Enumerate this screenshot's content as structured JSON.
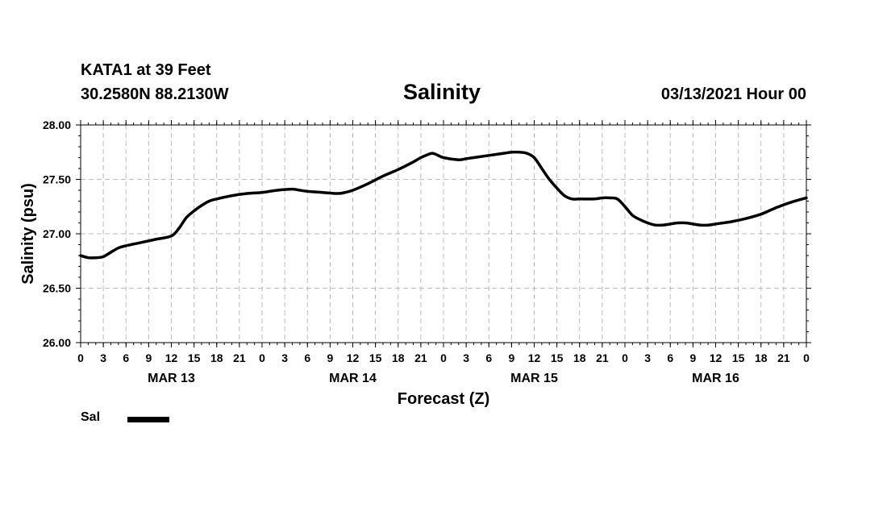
{
  "header": {
    "station": "KATA1 at 39 Feet",
    "coords": "30.2580N 88.2130W",
    "title": "Salinity",
    "date": "03/13/2021 Hour 00"
  },
  "legend": {
    "label": "Sal"
  },
  "chart_data": {
    "type": "line",
    "title": "Salinity",
    "xlabel": "Forecast (Z)",
    "ylabel": "Salinity (psu)",
    "ylim": [
      26.0,
      28.0
    ],
    "yticks": [
      26.0,
      26.5,
      27.0,
      27.5,
      28.0
    ],
    "ytick_labels": [
      "26.00",
      "26.50",
      "27.00",
      "27.50",
      "28.00"
    ],
    "xlim": [
      0,
      96
    ],
    "xticks": [
      0,
      3,
      6,
      9,
      12,
      15,
      18,
      21,
      24,
      27,
      30,
      33,
      36,
      39,
      42,
      45,
      48,
      51,
      54,
      57,
      60,
      63,
      66,
      69,
      72,
      75,
      78,
      81,
      84,
      87,
      90,
      93,
      96
    ],
    "xtick_labels": [
      "0",
      "3",
      "6",
      "9",
      "12",
      "15",
      "18",
      "21",
      "0",
      "3",
      "6",
      "9",
      "12",
      "15",
      "18",
      "21",
      "0",
      "3",
      "6",
      "9",
      "12",
      "15",
      "18",
      "21",
      "0",
      "3",
      "6",
      "9",
      "12",
      "15",
      "18",
      "21",
      "0"
    ],
    "date_labels": [
      {
        "label": "MAR 13",
        "hour": 12
      },
      {
        "label": "MAR 14",
        "hour": 36
      },
      {
        "label": "MAR 15",
        "hour": 60
      },
      {
        "label": "MAR 16",
        "hour": 84
      }
    ],
    "grid": true,
    "series": [
      {
        "name": "Sal",
        "color": "#000000",
        "x": [
          0,
          1,
          2,
          3,
          4,
          5,
          6,
          8,
          10,
          12,
          13,
          14,
          15,
          16,
          17,
          18,
          20,
          22,
          24,
          26,
          28,
          29,
          30,
          32,
          34,
          35,
          36,
          38,
          40,
          42,
          44,
          45,
          46,
          46.5,
          47,
          48,
          50,
          51,
          52,
          54,
          56,
          57,
          58,
          59,
          60,
          61,
          62,
          63,
          64,
          65,
          66,
          68,
          69,
          70,
          71,
          72,
          73,
          74,
          75,
          76,
          77,
          78,
          79,
          80,
          81,
          82,
          83,
          84,
          85,
          86,
          88,
          90,
          92,
          94,
          96
        ],
        "values": [
          26.8,
          26.78,
          26.78,
          26.79,
          26.83,
          26.87,
          26.89,
          26.92,
          26.95,
          26.98,
          27.05,
          27.15,
          27.21,
          27.26,
          27.3,
          27.32,
          27.35,
          27.37,
          27.38,
          27.4,
          27.41,
          27.4,
          27.39,
          27.38,
          27.37,
          27.38,
          27.4,
          27.46,
          27.53,
          27.59,
          27.66,
          27.7,
          27.73,
          27.74,
          27.73,
          27.7,
          27.68,
          27.69,
          27.7,
          27.72,
          27.74,
          27.75,
          27.75,
          27.74,
          27.7,
          27.6,
          27.5,
          27.42,
          27.35,
          27.32,
          27.32,
          27.32,
          27.33,
          27.33,
          27.32,
          27.25,
          27.17,
          27.13,
          27.1,
          27.08,
          27.08,
          27.09,
          27.1,
          27.1,
          27.09,
          27.08,
          27.08,
          27.09,
          27.1,
          27.11,
          27.14,
          27.18,
          27.24,
          27.29,
          27.33
        ]
      }
    ]
  }
}
